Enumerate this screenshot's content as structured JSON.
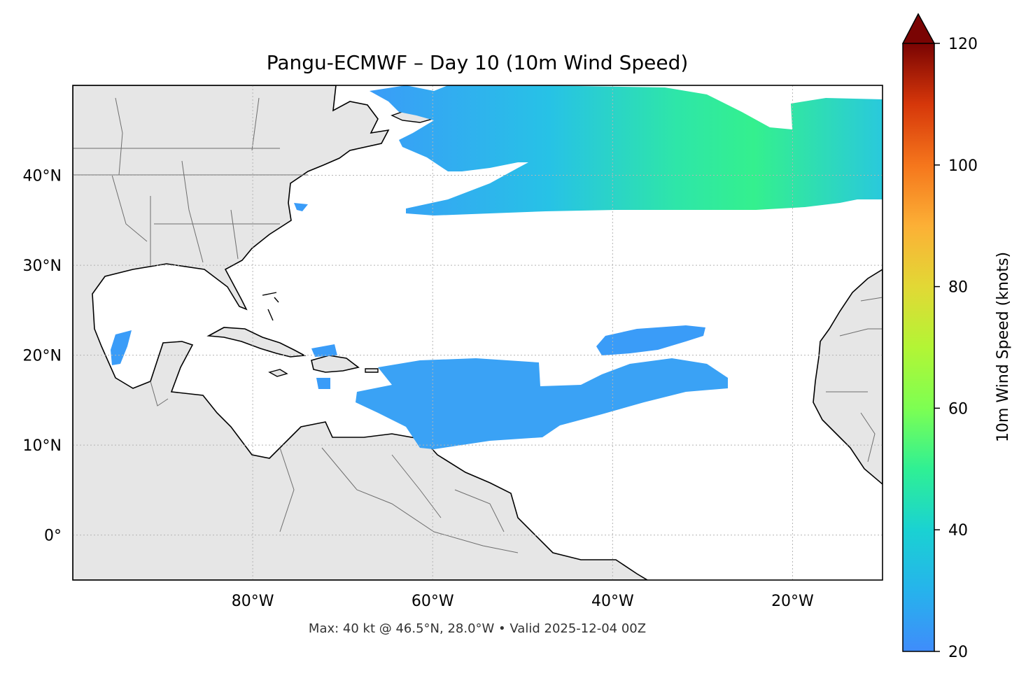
{
  "title": "Pangu-ECMWF – Day 10 (10m Wind Speed)",
  "footer": "Max: 40 kt @ 46.5°N, 28.0°W • Valid 2025-12-04 00Z",
  "map": {
    "lon_range": [
      -100,
      -10
    ],
    "lat_range": [
      -5,
      50
    ],
    "lat_ticks": [
      {
        "value": 40,
        "label": "40°N"
      },
      {
        "value": 30,
        "label": "30°N"
      },
      {
        "value": 20,
        "label": "20°N"
      },
      {
        "value": 10,
        "label": "10°N"
      },
      {
        "value": 0,
        "label": "0°"
      }
    ],
    "lon_ticks": [
      {
        "value": -80,
        "label": "80°W"
      },
      {
        "value": -60,
        "label": "60°W"
      },
      {
        "value": -40,
        "label": "40°W"
      },
      {
        "value": -20,
        "label": "20°W"
      }
    ],
    "gridlines": true,
    "land_color": "#e6e6e6",
    "ocean_color": "#ffffff"
  },
  "colorbar": {
    "label": "10m Wind Speed (knots)",
    "range": [
      20,
      120
    ],
    "ticks": [
      "20",
      "40",
      "60",
      "80",
      "100",
      "120"
    ],
    "extend": "max",
    "colormap": "turbo"
  },
  "chart_data": {
    "type": "heatmap",
    "variable": "10m Wind Speed",
    "units": "knots",
    "max_value": 40,
    "max_location": {
      "lat": 46.5,
      "lon": -28.0
    }
  }
}
